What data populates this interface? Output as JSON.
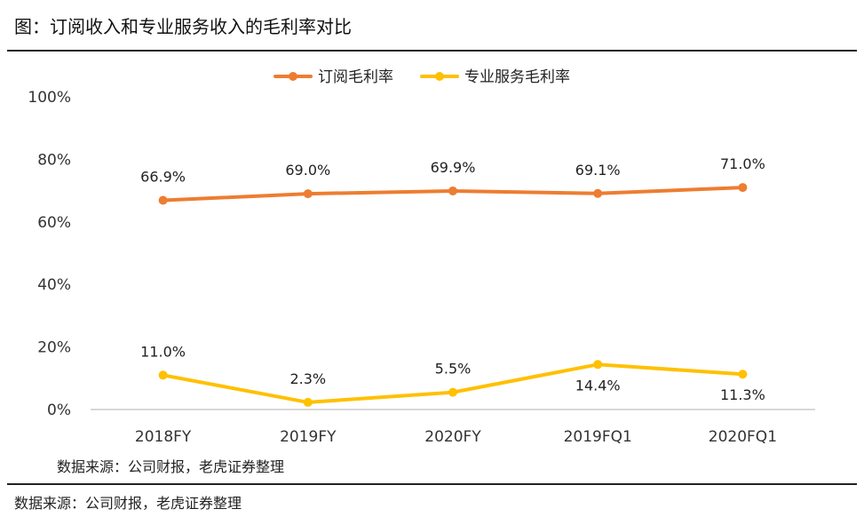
{
  "figure_title": "图：订阅收入和专业服务收入的毛利率对比",
  "inner_source": "数据来源：公司财报，老虎证券整理",
  "figure_source": "数据来源：公司财报，老虎证券整理",
  "chart_data": {
    "type": "line",
    "categories": [
      "2018FY",
      "2019FY",
      "2020FY",
      "2019FQ1",
      "2020FQ1"
    ],
    "ylim": [
      0,
      100
    ],
    "yticks": [
      0,
      20,
      40,
      60,
      80,
      100
    ],
    "ytick_labels": [
      "0%",
      "20%",
      "40%",
      "60%",
      "80%",
      "100%"
    ],
    "grid": false,
    "legend_position": "top-center",
    "series": [
      {
        "name": "订阅毛利率",
        "color": "#ED7D31",
        "values": [
          66.9,
          69.0,
          69.9,
          69.1,
          71.0
        ],
        "labels": [
          "66.9%",
          "69.0%",
          "69.9%",
          "69.1%",
          "71.0%"
        ],
        "label_position": "above"
      },
      {
        "name": "专业服务毛利率",
        "color": "#FFC000",
        "values": [
          11.0,
          2.3,
          5.5,
          14.4,
          11.3
        ],
        "labels": [
          "11.0%",
          "2.3%",
          "5.5%",
          "14.4%",
          "11.3%"
        ],
        "label_position": [
          "above",
          "above",
          "above",
          "below",
          "below"
        ]
      }
    ]
  }
}
